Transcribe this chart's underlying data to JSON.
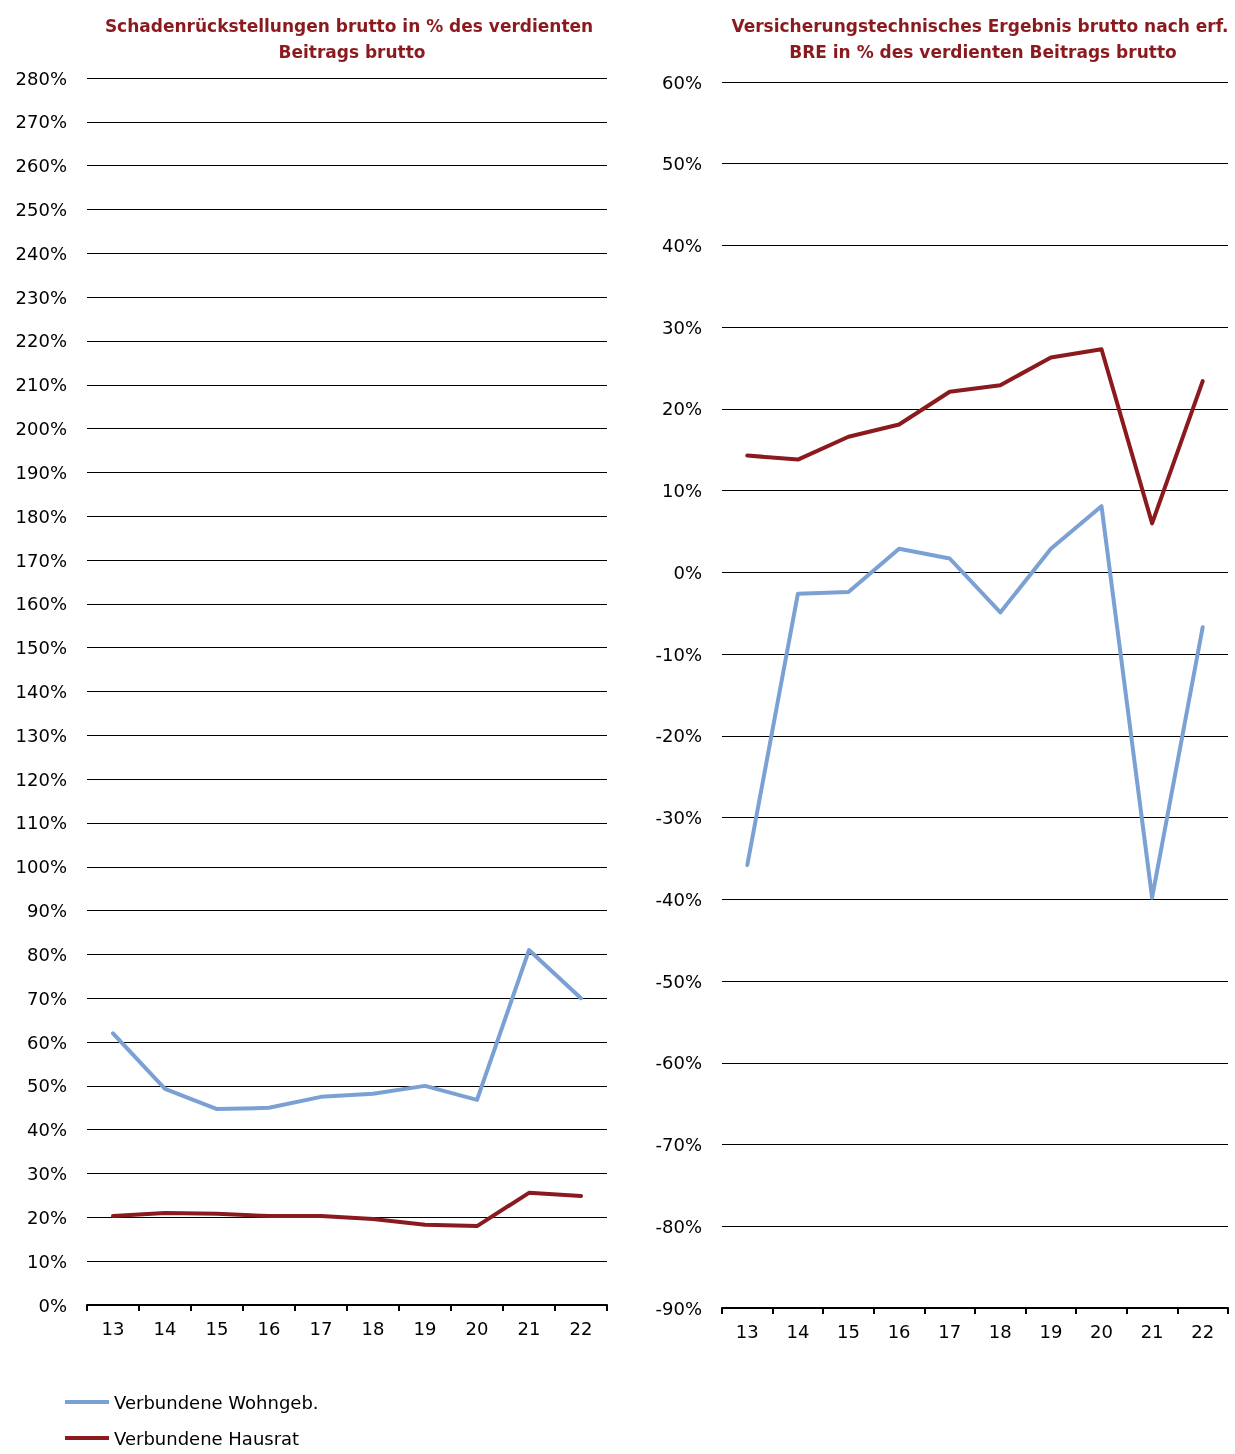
{
  "chart_data": [
    {
      "type": "line",
      "title": "Schadenrückstellungen brutto in % des verdienten Beitrags brutto",
      "categories": [
        "13",
        "14",
        "15",
        "16",
        "17",
        "18",
        "19",
        "20",
        "21",
        "22"
      ],
      "series": [
        {
          "name": "Verbundene Wohngeb.",
          "color": "#7ba0d4",
          "values": [
            62,
            49.3,
            44.7,
            45,
            47.5,
            48.2,
            50,
            46.8,
            81,
            70
          ]
        },
        {
          "name": "Verbundene Hausrat",
          "color": "#8b1a1f",
          "values": [
            20.3,
            21,
            20.8,
            20.3,
            20.3,
            19.6,
            18.3,
            18,
            25.6,
            24.9
          ]
        }
      ],
      "ylim": [
        0,
        280
      ],
      "yticks": [
        {
          "value": 0,
          "label": "0%"
        },
        {
          "value": 10,
          "label": "10%"
        },
        {
          "value": 20,
          "label": "20%"
        },
        {
          "value": 30,
          "label": "30%"
        },
        {
          "value": 40,
          "label": "40%"
        },
        {
          "value": 50,
          "label": "50%"
        },
        {
          "value": 60,
          "label": "60%"
        },
        {
          "value": 70,
          "label": "70%"
        },
        {
          "value": 80,
          "label": "80%"
        },
        {
          "value": 90,
          "label": "90%"
        },
        {
          "value": 100,
          "label": "100%"
        },
        {
          "value": 110,
          "label": "110%"
        },
        {
          "value": 120,
          "label": "120%"
        },
        {
          "value": 130,
          "label": "130%"
        },
        {
          "value": 140,
          "label": "140%"
        },
        {
          "value": 150,
          "label": "150%"
        },
        {
          "value": 160,
          "label": "160%"
        },
        {
          "value": 170,
          "label": "170%"
        },
        {
          "value": 180,
          "label": "180%"
        },
        {
          "value": 190,
          "label": "190%"
        },
        {
          "value": 200,
          "label": "200%"
        },
        {
          "value": 210,
          "label": "210%"
        },
        {
          "value": 220,
          "label": "220%"
        },
        {
          "value": 230,
          "label": "230%"
        },
        {
          "value": 240,
          "label": "240%"
        },
        {
          "value": 250,
          "label": "250%"
        },
        {
          "value": 260,
          "label": "260%"
        },
        {
          "value": 270,
          "label": "270%"
        },
        {
          "value": 280,
          "label": "280%"
        }
      ],
      "grid": "y",
      "legend": "bottom",
      "marker": "none",
      "line_style": "solid"
    },
    {
      "type": "line",
      "title": "Versicherungstechnisches Ergebnis brutto nach erf. BRE in % des verdienten Beitrags brutto",
      "categories": [
        "13",
        "14",
        "15",
        "16",
        "17",
        "18",
        "19",
        "20",
        "21",
        "22"
      ],
      "series": [
        {
          "color": "#7ba0d4",
          "values": [
            -35.8,
            -2.6,
            -2.4,
            2.9,
            1.7,
            -4.9,
            2.9,
            8.1,
            -39.8,
            -6.7
          ]
        },
        {
          "color": "#8b1a1f",
          "values": [
            14.3,
            13.8,
            16.6,
            18.1,
            22.1,
            22.9,
            26.3,
            27.3,
            6,
            23.4
          ]
        }
      ],
      "ylim": [
        -90,
        60
      ],
      "yticks": [
        {
          "value": -90,
          "label": "-90%"
        },
        {
          "value": -80,
          "label": "-80%"
        },
        {
          "value": -70,
          "label": "-70%"
        },
        {
          "value": -60,
          "label": "-60%"
        },
        {
          "value": -50,
          "label": "-50%"
        },
        {
          "value": -40,
          "label": "-40%"
        },
        {
          "value": -30,
          "label": "-30%"
        },
        {
          "value": -20,
          "label": "-20%"
        },
        {
          "value": -10,
          "label": "-10%"
        },
        {
          "value": 0,
          "label": "0%"
        },
        {
          "value": 10,
          "label": "10%"
        },
        {
          "value": 20,
          "label": "20%"
        },
        {
          "value": 30,
          "label": "30%"
        },
        {
          "value": 40,
          "label": "40%"
        },
        {
          "value": 50,
          "label": "50%"
        },
        {
          "value": 60,
          "label": "60%"
        }
      ],
      "grid": "y",
      "marker": "none",
      "line_style": "solid"
    }
  ]
}
